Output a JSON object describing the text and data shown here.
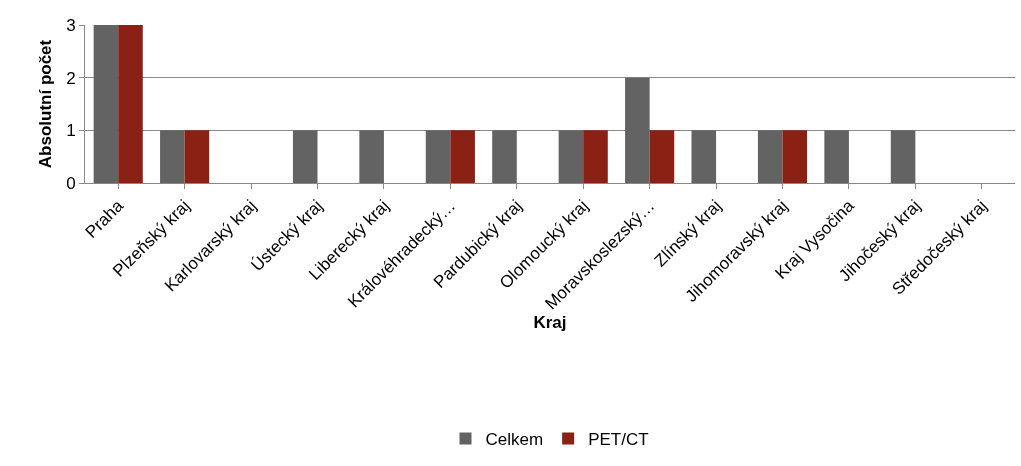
{
  "chart_data": {
    "type": "bar",
    "xlabel": "Kraj",
    "ylabel": "Absolutní počet",
    "categories": [
      "Praha",
      "Plzeňský kraj",
      "Karlovarský kraj",
      "Ústecký kraj",
      "Liberecký kraj",
      "Královéhradecký…",
      "Pardubický kraj",
      "Olomoucký kraj",
      "Moravskoslezský…",
      "Zlínský kraj",
      "Jihomoravský kraj",
      "Kraj Vysočina",
      "Jihočeský kraj",
      "Středočeský kraj"
    ],
    "series": [
      {
        "name": "Celkem",
        "color": "#636363",
        "values": [
          3,
          1,
          0,
          1,
          1,
          1,
          1,
          1,
          2,
          1,
          1,
          1,
          1,
          0
        ]
      },
      {
        "name": "PET/CT",
        "color": "#8b2115",
        "values": [
          3,
          1,
          0,
          0,
          0,
          1,
          0,
          1,
          1,
          0,
          1,
          0,
          0,
          0
        ]
      }
    ],
    "ylim": [
      0,
      3
    ],
    "yticks": [
      0,
      1,
      2,
      3
    ],
    "grid": "y",
    "legend": "bottom"
  }
}
